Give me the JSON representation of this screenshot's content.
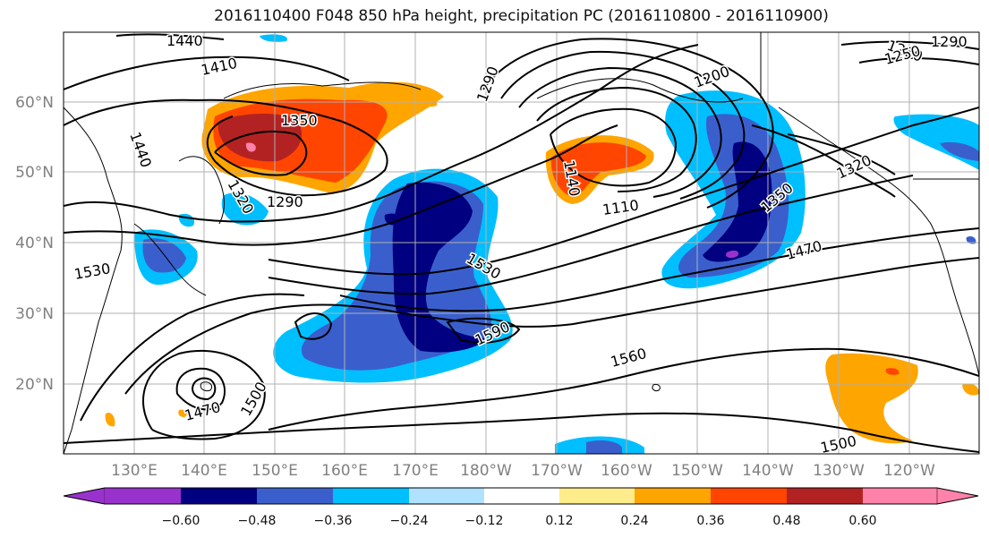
{
  "title": "2016110400 F048 850 hPa height, precipitation PC (2016110800 - 2016110900)",
  "lon_labels": [
    "130°E",
    "140°E",
    "150°E",
    "160°E",
    "170°E",
    "180°W",
    "170°W",
    "160°W",
    "150°W",
    "140°W",
    "130°W",
    "120°W"
  ],
  "lat_labels": [
    "60°N",
    "50°N",
    "40°N",
    "30°N",
    "20°N"
  ],
  "colorbar": {
    "colors": [
      "#9932cc",
      "#000080",
      "#3a5fcd",
      "#00bfff",
      "#b0e2ff",
      "#ffffff",
      "#ffec8b",
      "#ffa500",
      "#ff4500",
      "#b22222",
      "#ff82ab"
    ],
    "labels": [
      "−0.60",
      "−0.48",
      "−0.36",
      "−0.24",
      "−0.12",
      "0.12",
      "0.24",
      "0.36",
      "0.48",
      "0.60"
    ]
  },
  "contour_labels": [
    {
      "text": "1440"
    },
    {
      "text": "1410"
    },
    {
      "text": "1350"
    },
    {
      "text": "1440"
    },
    {
      "text": "1320"
    },
    {
      "text": "1290"
    },
    {
      "text": "1290"
    },
    {
      "text": "1200"
    },
    {
      "text": "1140"
    },
    {
      "text": "1110"
    },
    {
      "text": "1350"
    },
    {
      "text": "1470"
    },
    {
      "text": "1530"
    },
    {
      "text": "1530"
    },
    {
      "text": "1590"
    },
    {
      "text": "1560"
    },
    {
      "text": "1500"
    },
    {
      "text": "1470"
    },
    {
      "text": "1500"
    },
    {
      "text": "1260"
    },
    {
      "text": "1250"
    },
    {
      "text": "1290"
    },
    {
      "text": "1320"
    }
  ]
}
